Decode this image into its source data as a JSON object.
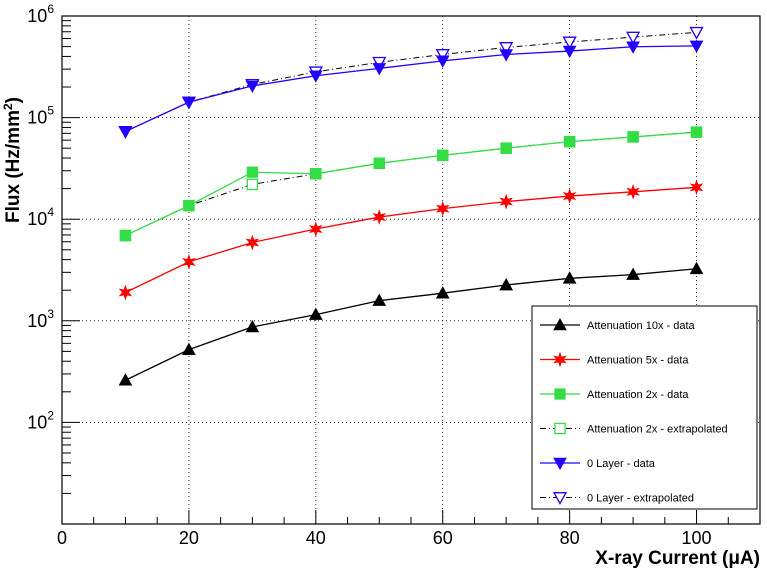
{
  "chart_data": {
    "type": "line",
    "title": "",
    "xlabel": "X-ray Current (μA)",
    "ylabel_main": "Flux (Hz/mm",
    "ylabel_sup": "2",
    "ylabel_close": ")",
    "xlim": [
      0,
      110
    ],
    "ylim": [
      10,
      1000000
    ],
    "yscale": "log",
    "grid": true,
    "legend_position": "bottom-right",
    "x_ticks": [
      "0",
      "20",
      "40",
      "60",
      "80",
      "100"
    ],
    "x_tick_values": [
      0,
      20,
      40,
      60,
      80,
      100
    ],
    "y_ticks": [
      {
        "value": 100,
        "base": "10",
        "exp": "2"
      },
      {
        "value": 1000,
        "base": "10",
        "exp": "3"
      },
      {
        "value": 10000,
        "base": "10",
        "exp": "4"
      },
      {
        "value": 100000,
        "base": "10",
        "exp": "5"
      },
      {
        "value": 1000000,
        "base": "10",
        "exp": "6"
      }
    ],
    "series": [
      {
        "name": "Attenuation 10x - data",
        "color": "#000000",
        "marker": "triangle-up",
        "filled": true,
        "dash": "solid",
        "x": [
          10,
          20,
          30,
          40,
          50,
          60,
          70,
          80,
          90,
          100
        ],
        "y": [
          260,
          520,
          870,
          1150,
          1580,
          1870,
          2250,
          2620,
          2850,
          3250
        ]
      },
      {
        "name": "Attenuation 5x - data",
        "color": "#ff0000",
        "marker": "star",
        "filled": true,
        "dash": "solid",
        "x": [
          10,
          20,
          30,
          40,
          50,
          60,
          70,
          80,
          90,
          100
        ],
        "y": [
          1900,
          3800,
          5900,
          8000,
          10500,
          12700,
          14900,
          16900,
          18600,
          20600
        ]
      },
      {
        "name": "Attenuation 2x - data",
        "color": "#33dd44",
        "marker": "square",
        "filled": true,
        "dash": "solid",
        "x": [
          10,
          20,
          30,
          40,
          50,
          60,
          70,
          80,
          90,
          100
        ],
        "y": [
          6900,
          13600,
          29000,
          28000,
          35500,
          42500,
          50000,
          58000,
          64500,
          72000
        ]
      },
      {
        "name": "Attenuation 2x - extrapolated",
        "color": "#33dd44",
        "line_color": "#000000",
        "marker": "square",
        "filled": false,
        "dash": "dashdot",
        "x": [
          10,
          20,
          30,
          40,
          50,
          60,
          70,
          80,
          90,
          100
        ],
        "y": [
          6900,
          13600,
          22000,
          28000,
          35500,
          42500,
          50000,
          58000,
          64500,
          72000
        ]
      },
      {
        "name": "0 Layer - data",
        "color": "#2200ff",
        "marker": "triangle-down",
        "filled": true,
        "dash": "solid",
        "x": [
          10,
          20,
          30,
          40,
          50,
          60,
          70,
          80,
          90,
          100
        ],
        "y": [
          73000,
          142000,
          205000,
          258000,
          305000,
          362000,
          418000,
          452000,
          498000,
          508000
        ]
      },
      {
        "name": "0 Layer - extrapolated",
        "color": "#2200ff",
        "line_color": "#000000",
        "marker": "triangle-down",
        "filled": false,
        "dash": "dashdot",
        "x": [
          10,
          20,
          30,
          40,
          50,
          60,
          70,
          80,
          90,
          100
        ],
        "y": [
          73000,
          142000,
          212000,
          282000,
          350000,
          418000,
          490000,
          555000,
          620000,
          690000
        ]
      }
    ]
  }
}
